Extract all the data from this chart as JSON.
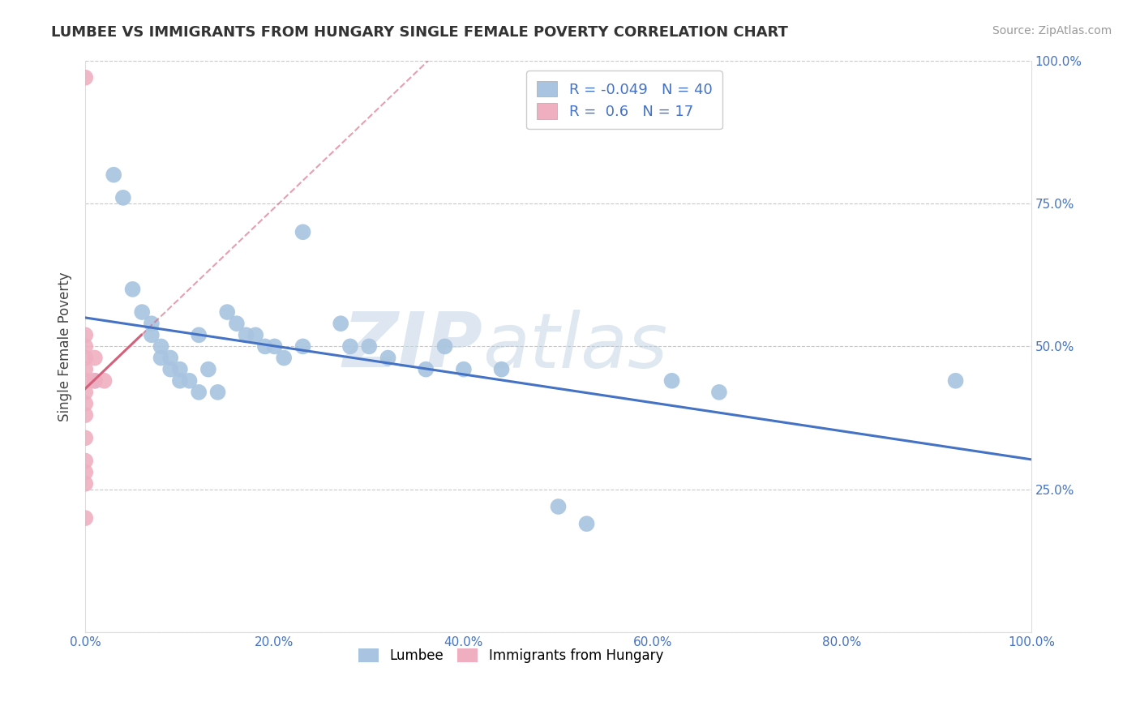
{
  "title": "LUMBEE VS IMMIGRANTS FROM HUNGARY SINGLE FEMALE POVERTY CORRELATION CHART",
  "source": "Source: ZipAtlas.com",
  "ylabel": "Single Female Poverty",
  "xlim": [
    0.0,
    1.0
  ],
  "ylim": [
    0.0,
    1.0
  ],
  "xtick_labels": [
    "0.0%",
    "20.0%",
    "40.0%",
    "60.0%",
    "80.0%",
    "100.0%"
  ],
  "ytick_labels_right": [
    "100.0%",
    "75.0%",
    "50.0%",
    "25.0%"
  ],
  "ytick_positions": [
    0.0,
    0.25,
    0.5,
    0.75,
    1.0
  ],
  "ytick_positions_right": [
    1.0,
    0.75,
    0.5,
    0.25
  ],
  "xtick_positions": [
    0.0,
    0.2,
    0.4,
    0.6,
    0.8,
    1.0
  ],
  "lumbee_color": "#a8c4e0",
  "hungary_color": "#f0afc0",
  "lumbee_line_color": "#4472c4",
  "hungary_line_color": "#d4607a",
  "lumbee_R": -0.049,
  "lumbee_N": 40,
  "hungary_R": 0.6,
  "hungary_N": 17,
  "lumbee_scatter": [
    [
      0.01,
      0.44
    ],
    [
      0.03,
      0.8
    ],
    [
      0.04,
      0.76
    ],
    [
      0.05,
      0.6
    ],
    [
      0.06,
      0.56
    ],
    [
      0.07,
      0.54
    ],
    [
      0.07,
      0.52
    ],
    [
      0.08,
      0.5
    ],
    [
      0.08,
      0.48
    ],
    [
      0.09,
      0.48
    ],
    [
      0.09,
      0.46
    ],
    [
      0.1,
      0.46
    ],
    [
      0.1,
      0.44
    ],
    [
      0.11,
      0.44
    ],
    [
      0.12,
      0.42
    ],
    [
      0.12,
      0.52
    ],
    [
      0.13,
      0.46
    ],
    [
      0.14,
      0.42
    ],
    [
      0.15,
      0.56
    ],
    [
      0.16,
      0.54
    ],
    [
      0.17,
      0.52
    ],
    [
      0.18,
      0.52
    ],
    [
      0.19,
      0.5
    ],
    [
      0.2,
      0.5
    ],
    [
      0.21,
      0.48
    ],
    [
      0.23,
      0.5
    ],
    [
      0.27,
      0.54
    ],
    [
      0.28,
      0.5
    ],
    [
      0.3,
      0.5
    ],
    [
      0.32,
      0.48
    ],
    [
      0.36,
      0.46
    ],
    [
      0.38,
      0.5
    ],
    [
      0.23,
      0.7
    ],
    [
      0.4,
      0.46
    ],
    [
      0.44,
      0.46
    ],
    [
      0.5,
      0.22
    ],
    [
      0.53,
      0.19
    ],
    [
      0.62,
      0.44
    ],
    [
      0.67,
      0.42
    ],
    [
      0.92,
      0.44
    ]
  ],
  "hungary_scatter": [
    [
      0.0,
      0.97
    ],
    [
      0.0,
      0.52
    ],
    [
      0.0,
      0.5
    ],
    [
      0.0,
      0.48
    ],
    [
      0.0,
      0.46
    ],
    [
      0.0,
      0.44
    ],
    [
      0.0,
      0.42
    ],
    [
      0.0,
      0.4
    ],
    [
      0.0,
      0.38
    ],
    [
      0.0,
      0.34
    ],
    [
      0.0,
      0.3
    ],
    [
      0.0,
      0.28
    ],
    [
      0.0,
      0.26
    ],
    [
      0.0,
      0.2
    ],
    [
      0.01,
      0.48
    ],
    [
      0.01,
      0.44
    ],
    [
      0.02,
      0.44
    ]
  ],
  "background_color": "#ffffff",
  "grid_color": "#c8c8c8",
  "watermark_zip": "ZIP",
  "watermark_atlas": "atlas"
}
